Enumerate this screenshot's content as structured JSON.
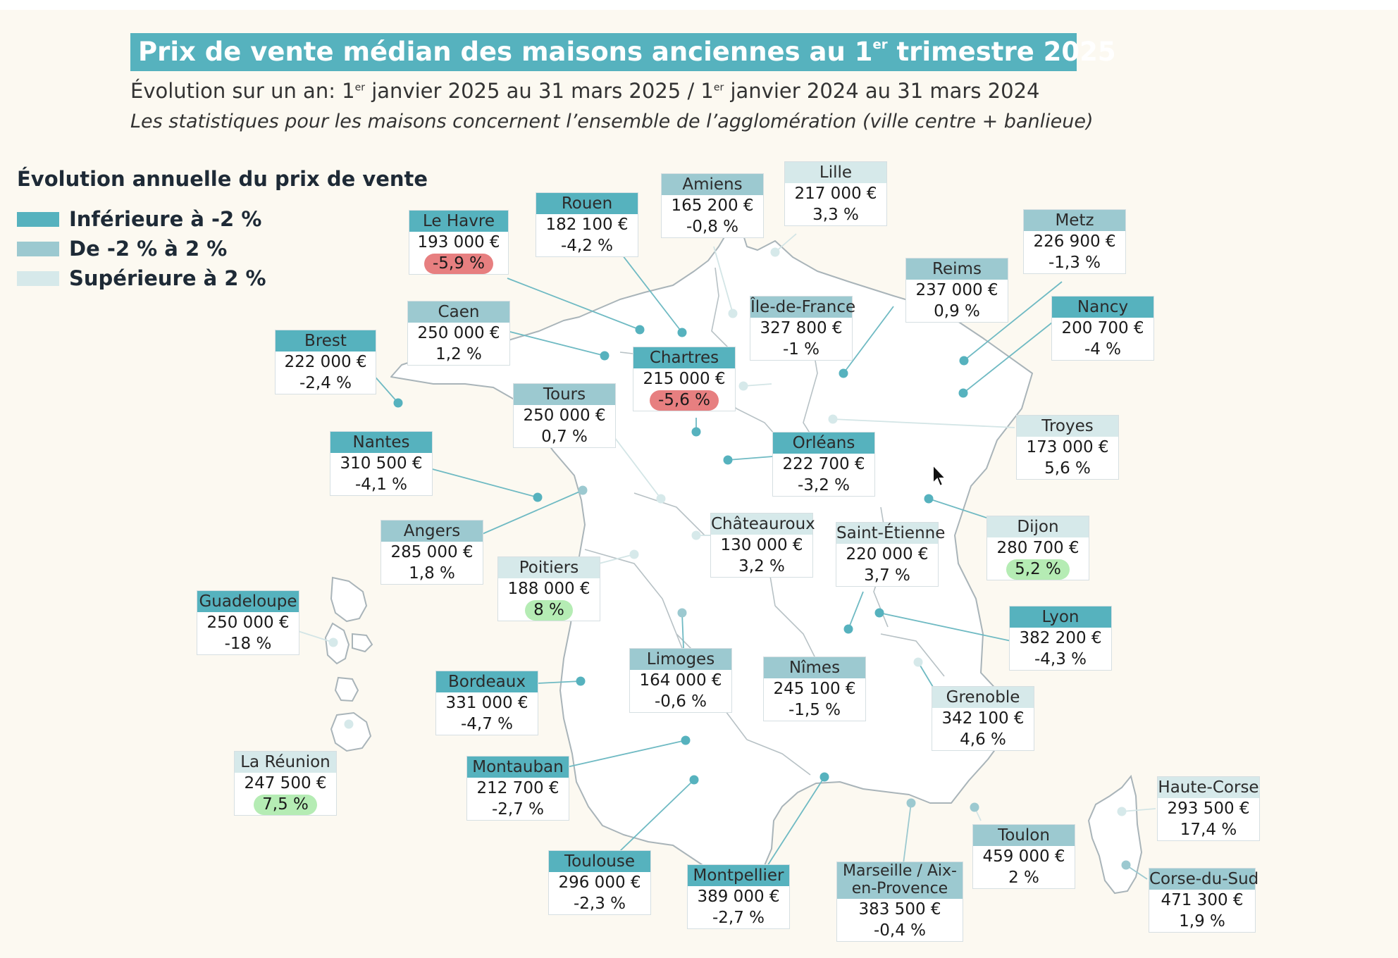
{
  "title": {
    "main_prefix": "Prix de vente médian des maisons anciennes au 1",
    "main_sup": "er",
    "main_suffix": " trimestre 2025"
  },
  "subtitle": {
    "part1": "Évolution sur un an: 1",
    "sup1": "er",
    "part2": " janvier 2025 au 31 mars 2025 / 1",
    "sup2": "er",
    "part3": " janvier 2024 au 31 mars 2024"
  },
  "note": "Les statistiques pour les maisons concernent l’ensemble de l’agglomération (ville centre + banlieue)",
  "legend": {
    "title": "Évolution annuelle du prix de vente",
    "items": [
      {
        "label": "Inférieure à -2 %",
        "color": "#56b2be"
      },
      {
        "label": "De -2 % à 2 %",
        "color": "#9cc9d0"
      },
      {
        "label": "Supérieure à 2 %",
        "color": "#d6e9ea"
      }
    ]
  },
  "colors": {
    "header_dark": "#56b2be",
    "header_mid": "#9cc9d0",
    "header_light": "#d6e9ea",
    "highlight_negative": "#e77f80",
    "highlight_positive": "#b5ecb4",
    "map_fill": "#ffffff",
    "map_border": "#a9b4b9"
  },
  "cities": [
    {
      "name": "Le Havre",
      "price": "193 000 €",
      "evolution": "-5,9 %",
      "highlight": "negative"
    },
    {
      "name": "Rouen",
      "price": "182 100 €",
      "evolution": "-4,2 %"
    },
    {
      "name": "Amiens",
      "price": "165 200 €",
      "evolution": "-0,8 %"
    },
    {
      "name": "Lille",
      "price": "217 000 €",
      "evolution": "3,3 %"
    },
    {
      "name": "Metz",
      "price": "226 900 €",
      "evolution": "-1,3 %"
    },
    {
      "name": "Reims",
      "price": "237 000 €",
      "evolution": "0,9 %"
    },
    {
      "name": "Nancy",
      "price": "200 700 €",
      "evolution": "-4 %"
    },
    {
      "name": "Caen",
      "price": "250 000 €",
      "evolution": "1,2 %"
    },
    {
      "name": "Île-de-France",
      "price": "327 800 €",
      "evolution": "-1 %"
    },
    {
      "name": "Brest",
      "price": "222 000 €",
      "evolution": "-2,4 %"
    },
    {
      "name": "Chartres",
      "price": "215 000 €",
      "evolution": "-5,6 %",
      "highlight": "negative"
    },
    {
      "name": "Tours",
      "price": "250 000 €",
      "evolution": "0,7 %"
    },
    {
      "name": "Troyes",
      "price": "173 000 €",
      "evolution": "5,6 %"
    },
    {
      "name": "Nantes",
      "price": "310 500 €",
      "evolution": "-4,1 %"
    },
    {
      "name": "Orléans",
      "price": "222 700 €",
      "evolution": "-3,2 %"
    },
    {
      "name": "Dijon",
      "price": "280 700 €",
      "evolution": "5,2 %",
      "highlight": "positive"
    },
    {
      "name": "Angers",
      "price": "285 000 €",
      "evolution": "1,8 %"
    },
    {
      "name": "Châteauroux",
      "price": "130 000 €",
      "evolution": "3,2 %"
    },
    {
      "name": "Saint-Étienne",
      "price": "220 000 €",
      "evolution": "3,7 %"
    },
    {
      "name": "Poitiers",
      "price": "188 000 €",
      "evolution": "8 %",
      "highlight": "positive"
    },
    {
      "name": "Guadeloupe",
      "price": "250 000 €",
      "evolution": "-18 %"
    },
    {
      "name": "Lyon",
      "price": "382 200 €",
      "evolution": "-4,3 %"
    },
    {
      "name": "Limoges",
      "price": "164 000 €",
      "evolution": "-0,6 %"
    },
    {
      "name": "Nîmes",
      "price": "245 100 €",
      "evolution": "-1,5 %"
    },
    {
      "name": "Bordeaux",
      "price": "331 000 €",
      "evolution": "-4,7 %"
    },
    {
      "name": "Grenoble",
      "price": "342 100 €",
      "evolution": "4,6 %"
    },
    {
      "name": "La Réunion",
      "price": "247 500 €",
      "evolution": "7,5 %",
      "highlight": "positive"
    },
    {
      "name": "Montauban",
      "price": "212 700 €",
      "evolution": "-2,7 %"
    },
    {
      "name": "Haute-Corse",
      "price": "293 500 €",
      "evolution": "17,4 %"
    },
    {
      "name": "Toulon",
      "price": "459 000 €",
      "evolution": "2 %"
    },
    {
      "name": "Toulouse",
      "price": "296 000 €",
      "evolution": "-2,3 %"
    },
    {
      "name": "Montpellier",
      "price": "389 000 €",
      "evolution": "-2,7 %"
    },
    {
      "name": "Marseille / Aix-en-Provence",
      "price": "383 500 €",
      "evolution": "-0,4 %"
    },
    {
      "name": "Corse-du-Sud",
      "price": "471 300 €",
      "evolution": "1,9 %"
    }
  ]
}
